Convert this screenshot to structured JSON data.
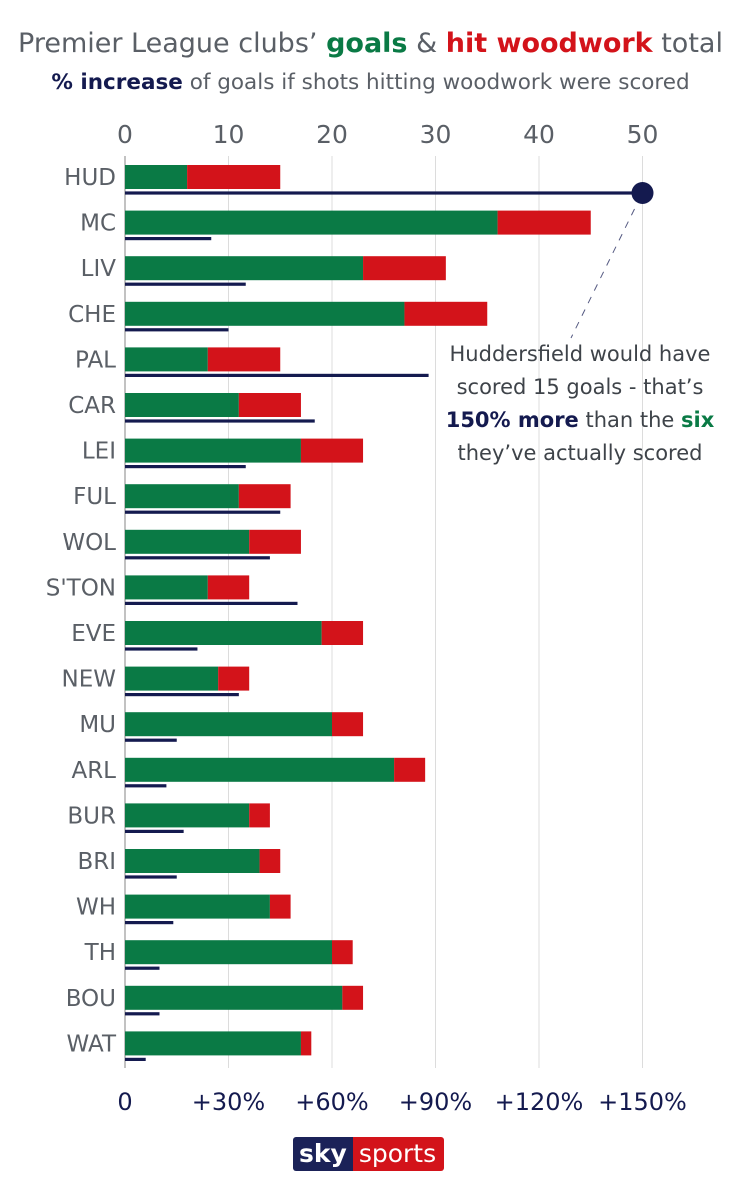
{
  "title": {
    "line1": {
      "part1": "Premier League clubs’ ",
      "goals": "goals",
      "amp": " & ",
      "woodwork": "hit woodwork",
      "part2": " total"
    },
    "line2": {
      "bold": "% increase",
      "rest": " of goals if shots hitting woodwork were scored"
    }
  },
  "colors": {
    "goals": "#0a7a45",
    "woodwork": "#d3131a",
    "increase": "#141a4f",
    "grid": "#dcdcdc",
    "text": "#5a5f66"
  },
  "chart_data": {
    "type": "bar",
    "orientation": "horizontal",
    "categories": [
      "HUD",
      "MC",
      "LIV",
      "CHE",
      "PAL",
      "CAR",
      "LEI",
      "FUL",
      "WOL",
      "S'TON",
      "EVE",
      "NEW",
      "MU",
      "ARL",
      "BUR",
      "BRI",
      "WH",
      "TH",
      "BOU",
      "WAT"
    ],
    "series": [
      {
        "name": "goals",
        "values": [
          6,
          36,
          23,
          27,
          8,
          11,
          17,
          11,
          12,
          8,
          19,
          9,
          20,
          26,
          12,
          13,
          14,
          20,
          21,
          17
        ]
      },
      {
        "name": "hit woodwork",
        "values": [
          9,
          9,
          8,
          8,
          7,
          6,
          6,
          5,
          5,
          4,
          4,
          3,
          3,
          3,
          2,
          2,
          2,
          2,
          2,
          1
        ]
      },
      {
        "name": "% increase",
        "values": [
          150,
          25,
          35,
          30,
          88,
          55,
          35,
          45,
          42,
          50,
          21,
          33,
          15,
          12,
          17,
          15,
          14,
          10,
          10,
          6
        ]
      }
    ],
    "top_axis": {
      "ticks": [
        "0",
        "10",
        "20",
        "30",
        "40",
        "50"
      ],
      "values": [
        0,
        10,
        20,
        30,
        40,
        50
      ],
      "range": [
        0,
        50
      ]
    },
    "bottom_axis": {
      "ticks": [
        "0",
        "+30%",
        "+60%",
        "+90%",
        "+120%",
        "+150%"
      ],
      "values": [
        0,
        30,
        60,
        90,
        120,
        150
      ],
      "range": [
        0,
        150
      ]
    }
  },
  "annotation": {
    "line1": "Huddersfield would have",
    "line2": "scored 15 goals - that’s",
    "line3_bold": "150% more",
    "line3_mid": " than the ",
    "line3_six": "six",
    "line4": "they’ve actually scored"
  },
  "logo": {
    "sky": "sky",
    "sports": "sports"
  }
}
